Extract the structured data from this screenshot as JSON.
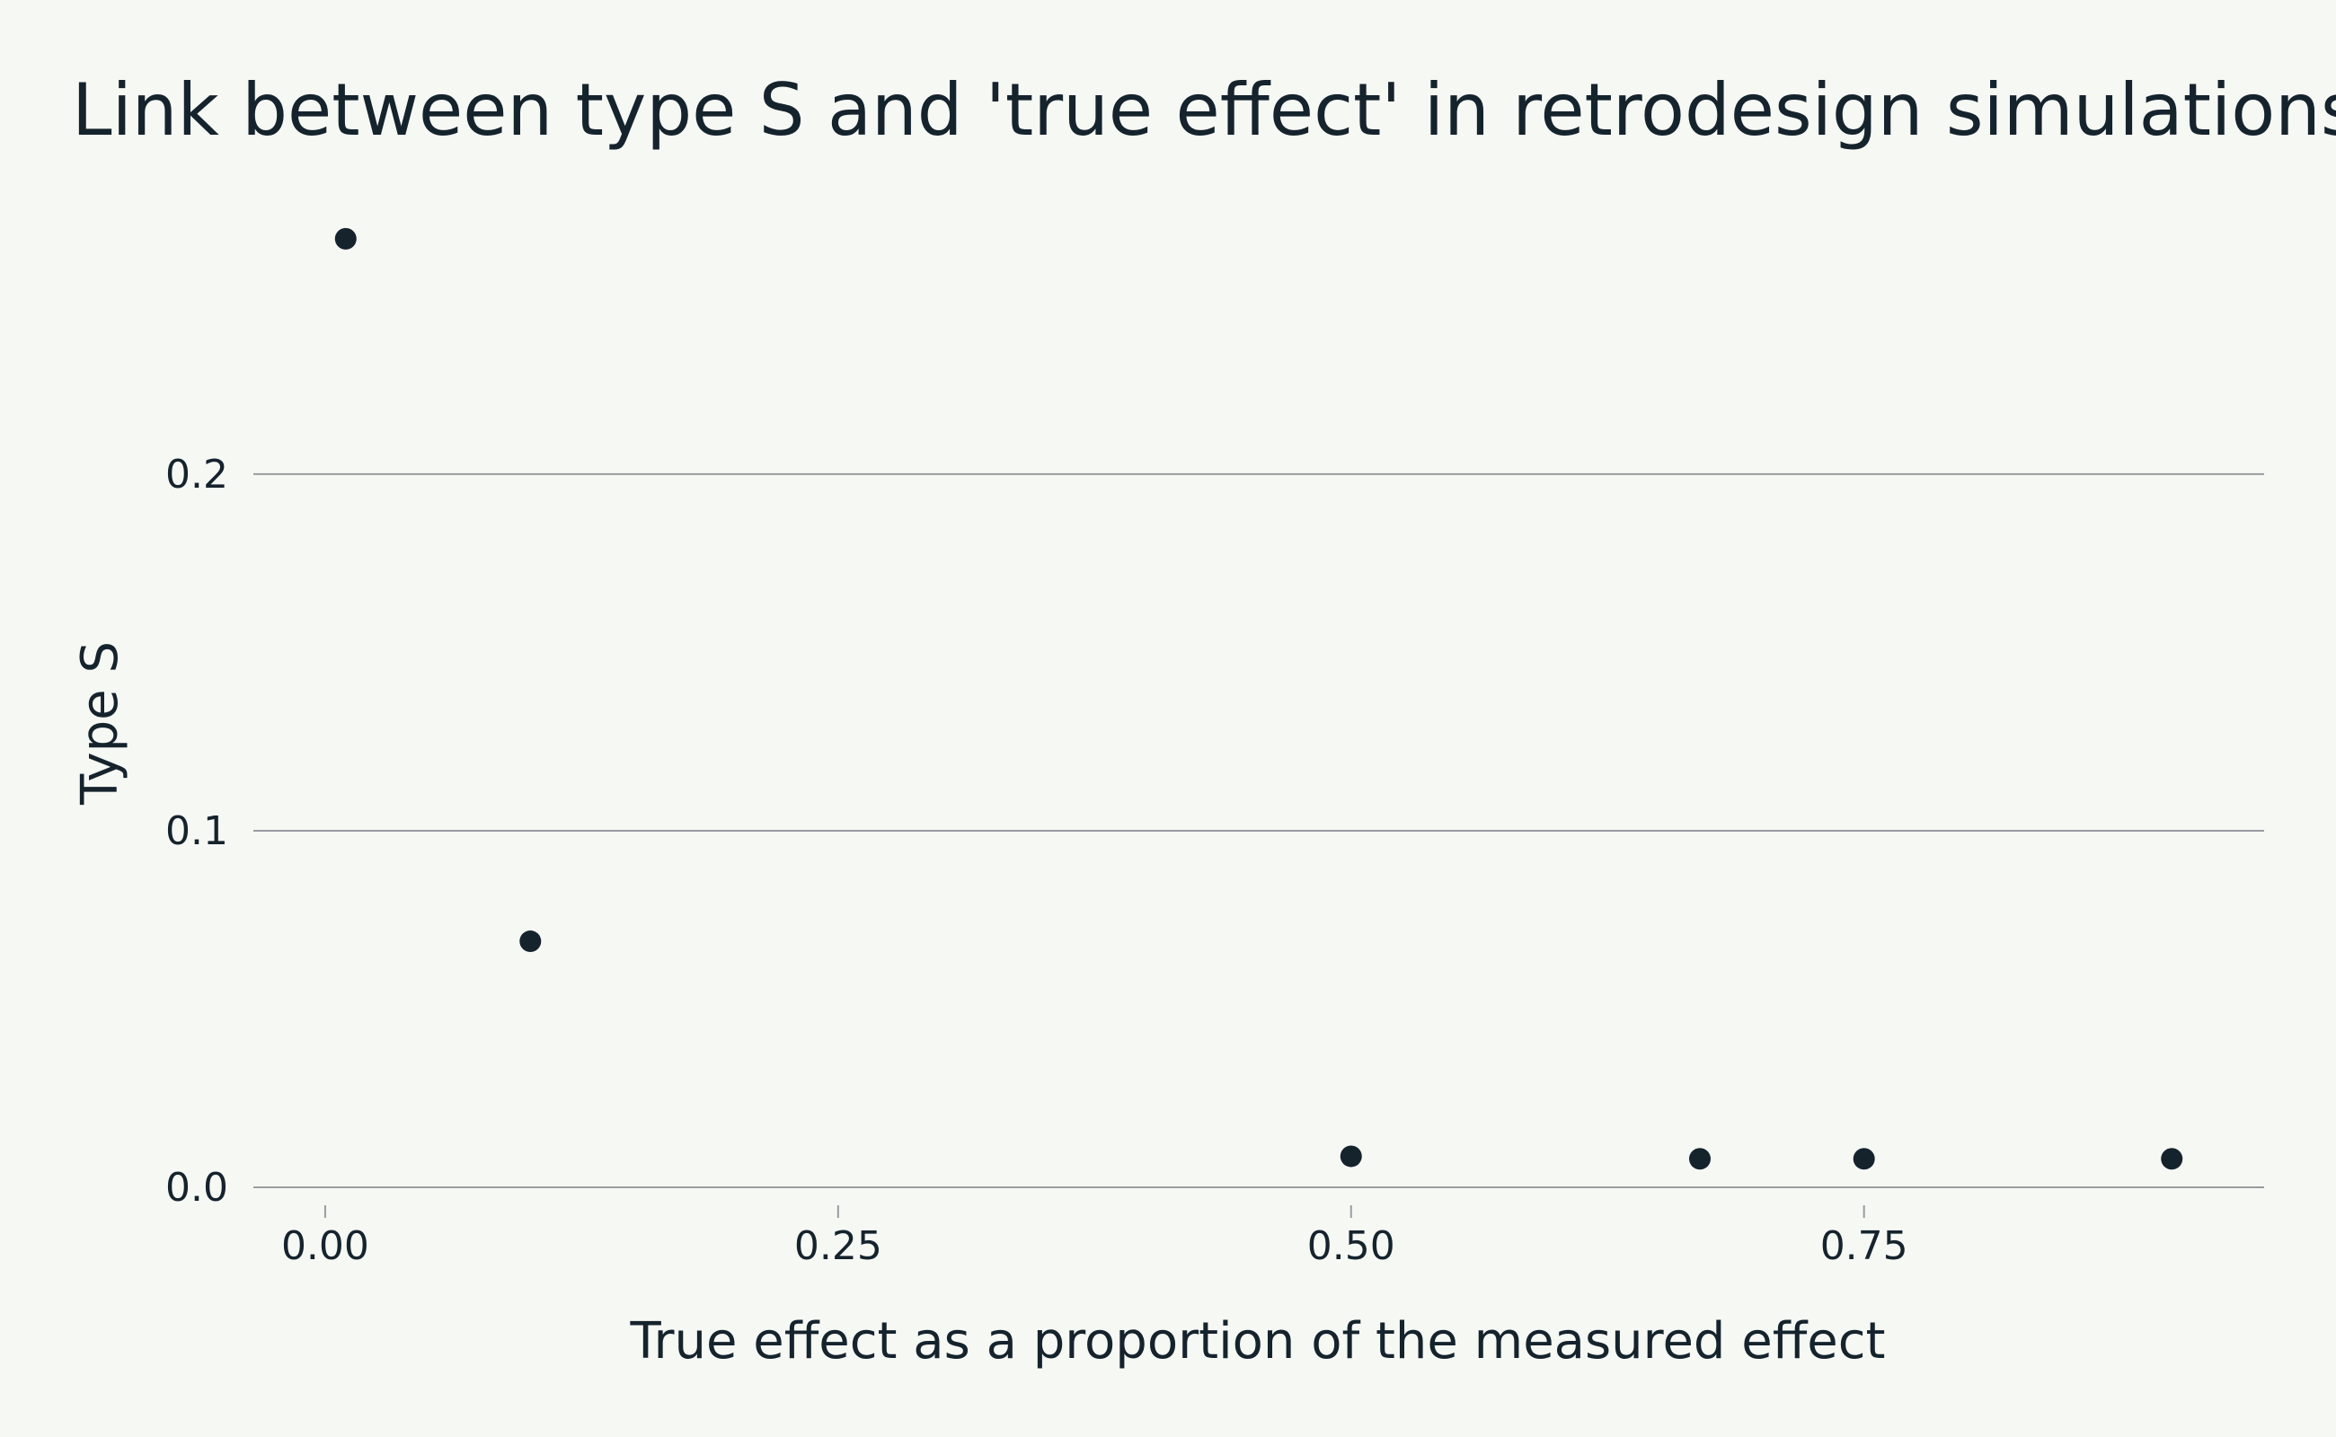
{
  "chart_data": {
    "type": "scatter",
    "title": "Link between type S and 'true effect' in retrodesign simulations",
    "xlabel": "True effect as a proportion of the measured effect",
    "ylabel": "Type S",
    "xlim": [
      -0.035,
      0.945
    ],
    "ylim": [
      0,
      0.27
    ],
    "x_ticks": [
      0.0,
      0.25,
      0.5,
      0.75
    ],
    "x_tick_labels": [
      "0.00",
      "0.25",
      "0.50",
      "0.75"
    ],
    "y_ticks": [
      0.0,
      0.1,
      0.2
    ],
    "y_tick_labels": [
      "0.0",
      "0.1",
      "0.2"
    ],
    "grid": "horizontal",
    "legend": "none",
    "colors": {
      "background": "#f6f8f4",
      "point": "#15232d",
      "text": "#15232d",
      "grid": "#9a9c9e"
    },
    "series": [
      {
        "x": [
          0.01,
          0.1,
          0.5,
          0.67,
          0.75,
          0.9
        ],
        "y": [
          0.266,
          0.069,
          0.0087,
          0.008,
          0.008,
          0.008
        ]
      }
    ]
  }
}
